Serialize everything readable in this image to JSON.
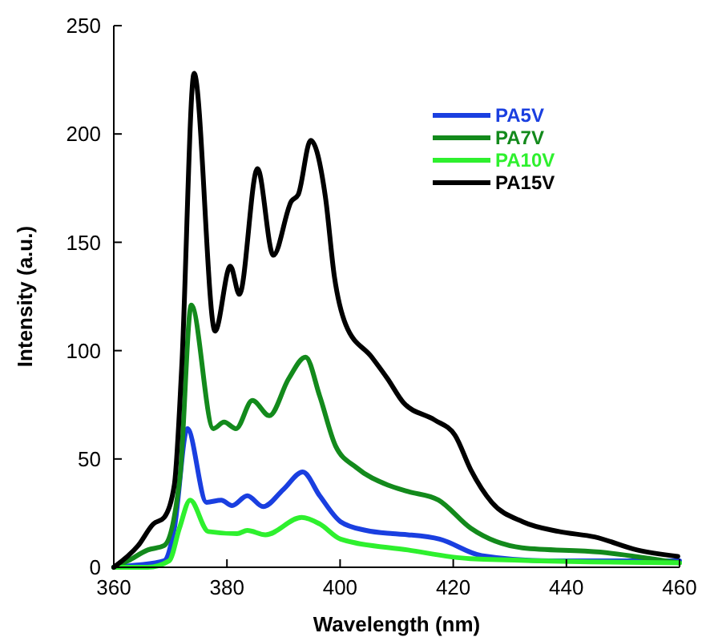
{
  "chart_data": {
    "type": "line",
    "xlabel": "Wavelength (nm)",
    "ylabel": "Intensity (a.u.)",
    "xlim": [
      360,
      460
    ],
    "xticks": [
      360,
      380,
      400,
      420,
      440,
      460
    ],
    "ylim": [
      0,
      250
    ],
    "yticks": [
      0,
      50,
      100,
      150,
      200,
      250
    ],
    "grid": false,
    "legend": "top right",
    "marker": "none",
    "line_style": "solid",
    "series": [
      {
        "name": "PA5V",
        "color": "#1a3fe0",
        "x": [
          360,
          364,
          368.9,
          370.7,
          373,
          376.4,
          379,
          380.9,
          383.6,
          386.4,
          390,
          393.4,
          396.4,
          400.1,
          404.6,
          409.3,
          412,
          417.6,
          425,
          436.9,
          460
        ],
        "values": [
          0,
          1,
          3,
          18,
          64,
          30,
          31,
          28.5,
          33,
          28,
          36,
          44,
          33,
          21,
          17,
          15.5,
          15,
          13,
          5.4,
          3,
          3
        ]
      },
      {
        "name": "PA7V",
        "color": "#138a1c",
        "x": [
          360,
          362.5,
          366,
          368.9,
          371.7,
          373.7,
          377.6,
          379.5,
          381.6,
          384.5,
          387.5,
          390.9,
          393.9,
          396.4,
          399.2,
          402.9,
          408.4,
          412,
          417.4,
          423.1,
          432.2,
          446,
          460
        ],
        "values": [
          0,
          3,
          8,
          10,
          42,
          121,
          64,
          67,
          64,
          77,
          70,
          87,
          97,
          79,
          56,
          46,
          38,
          35,
          31,
          18,
          9,
          7,
          2
        ]
      },
      {
        "name": "PA10V",
        "color": "#2ef02e",
        "x": [
          360,
          366,
          369.8,
          371.6,
          373.5,
          376.7,
          381.8,
          383.6,
          386.8,
          393.2,
          396.4,
          400.1,
          412,
          423,
          460
        ],
        "values": [
          0,
          0,
          3,
          18,
          31,
          16.5,
          15.5,
          17,
          15,
          23,
          20,
          13,
          8,
          4,
          2
        ]
      },
      {
        "name": "PA15V",
        "color": "#000000",
        "x": [
          360,
          364.3,
          367,
          368.9,
          370.7,
          372,
          374.2,
          377.9,
          380.6,
          382.2,
          385.4,
          388.2,
          391.4,
          392.6,
          394.8,
          397.4,
          399,
          401,
          405.6,
          408.4,
          411.2,
          416.7,
          420.3,
          423.1,
          426.8,
          432.3,
          438.7,
          445,
          452.5,
          459.7
        ],
        "values": [
          0,
          10,
          20,
          23,
          38,
          92,
          228,
          109,
          139,
          126,
          184,
          144,
          169,
          172,
          197,
          171,
          134,
          112,
          97,
          87,
          76,
          68,
          61,
          45,
          30,
          21,
          16.5,
          14,
          8,
          5
        ]
      }
    ]
  }
}
